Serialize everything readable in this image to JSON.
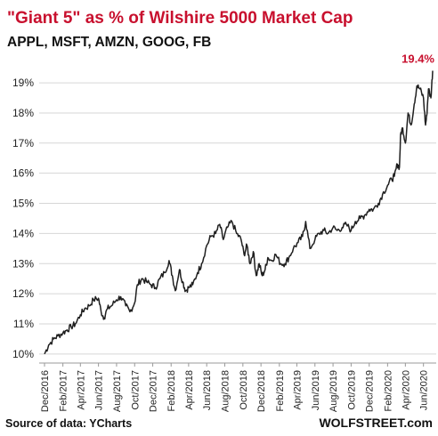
{
  "chart_data": {
    "type": "line",
    "title": "\"Giant 5\" as % of Wilshire 5000 Market Cap",
    "subtitle": "APPL, MSFT, AMZN, GOOG, FB",
    "ylim": [
      9.7,
      19.8
    ],
    "y_ticks": [
      "10%",
      "11%",
      "12%",
      "13%",
      "14%",
      "15%",
      "16%",
      "17%",
      "18%",
      "19%"
    ],
    "y_tick_values": [
      10,
      11,
      12,
      13,
      14,
      15,
      16,
      17,
      18,
      19
    ],
    "x_ticks": [
      "Dec/2016",
      "Feb/2017",
      "Apr/2017",
      "Jun/2017",
      "Aug/2017",
      "Oct/2017",
      "Dec/2017",
      "Feb/2018",
      "Apr/2018",
      "Jun/2018",
      "Aug/2018",
      "Oct/2018",
      "Dec/2018",
      "Feb/2019",
      "Apr/2019",
      "Jun/2019",
      "Aug/2019",
      "Oct/2019",
      "Dec/2019",
      "Feb/2020",
      "Apr/2020",
      "Jun/2020"
    ],
    "grid": true,
    "series": [
      {
        "x": [
          "2016-12-01",
          "2016-12-15",
          "2017-01-01",
          "2017-01-15",
          "2017-02-01",
          "2017-02-15",
          "2017-03-01",
          "2017-03-15",
          "2017-04-01",
          "2017-04-15",
          "2017-05-01",
          "2017-05-15",
          "2017-06-01",
          "2017-06-10",
          "2017-06-20",
          "2017-07-01",
          "2017-07-15",
          "2017-08-01",
          "2017-08-15",
          "2017-09-01",
          "2017-09-15",
          "2017-10-01",
          "2017-10-10",
          "2017-10-25",
          "2017-11-10",
          "2017-11-25",
          "2017-12-10",
          "2017-12-25",
          "2018-01-10",
          "2018-01-25",
          "2018-02-05",
          "2018-02-15",
          "2018-03-01",
          "2018-03-12",
          "2018-03-22",
          "2018-04-01",
          "2018-04-15",
          "2018-05-01",
          "2018-05-15",
          "2018-06-01",
          "2018-06-15",
          "2018-07-01",
          "2018-07-15",
          "2018-07-27",
          "2018-08-10",
          "2018-08-25",
          "2018-09-10",
          "2018-09-25",
          "2018-10-05",
          "2018-10-15",
          "2018-10-25",
          "2018-11-05",
          "2018-11-15",
          "2018-11-25",
          "2018-12-05",
          "2018-12-15",
          "2018-12-24",
          "2019-01-05",
          "2019-01-20",
          "2019-02-05",
          "2019-02-20",
          "2019-03-05",
          "2019-03-20",
          "2019-04-05",
          "2019-04-20",
          "2019-05-01",
          "2019-05-15",
          "2019-06-01",
          "2019-06-15",
          "2019-07-01",
          "2019-07-15",
          "2019-08-01",
          "2019-08-15",
          "2019-09-01",
          "2019-09-15",
          "2019-10-01",
          "2019-10-15",
          "2019-11-01",
          "2019-11-15",
          "2019-12-01",
          "2019-12-15",
          "2020-01-01",
          "2020-01-15",
          "2020-02-01",
          "2020-02-15",
          "2020-02-24",
          "2020-03-05",
          "2020-03-12",
          "2020-03-16",
          "2020-03-23",
          "2020-04-01",
          "2020-04-10",
          "2020-04-20",
          "2020-05-01",
          "2020-05-10",
          "2020-05-20",
          "2020-06-01",
          "2020-06-08",
          "2020-06-12",
          "2020-06-18",
          "2020-06-26",
          "2020-07-02"
        ],
        "y": [
          10.0,
          10.3,
          10.5,
          10.6,
          10.7,
          10.8,
          10.9,
          11.0,
          11.3,
          11.5,
          11.6,
          11.8,
          11.85,
          11.4,
          11.2,
          11.5,
          11.6,
          11.8,
          11.9,
          11.6,
          11.4,
          11.7,
          12.3,
          12.5,
          12.4,
          12.3,
          12.2,
          12.5,
          12.7,
          13.1,
          12.6,
          12.1,
          12.8,
          12.4,
          12.1,
          12.2,
          12.3,
          12.7,
          13.0,
          13.6,
          13.9,
          14.0,
          14.3,
          13.8,
          14.2,
          14.4,
          14.0,
          13.8,
          13.3,
          13.6,
          13.0,
          13.4,
          12.6,
          13.0,
          12.6,
          12.8,
          13.2,
          13.1,
          13.3,
          13.0,
          13.0,
          13.2,
          13.5,
          13.7,
          13.9,
          14.4,
          13.5,
          13.8,
          14.0,
          14.1,
          14.0,
          14.2,
          14.1,
          14.2,
          14.3,
          14.1,
          14.4,
          14.5,
          14.6,
          14.8,
          14.8,
          15.0,
          15.3,
          15.6,
          15.8,
          15.9,
          16.3,
          16.2,
          17.3,
          17.5,
          17.0,
          18.0,
          17.6,
          18.3,
          18.9,
          18.8,
          18.5,
          17.6,
          17.9,
          18.8,
          18.5,
          19.4
        ]
      }
    ],
    "annotation": "19.4%",
    "source": "Source of data: YCharts",
    "brand": "WOLFSTREET.com"
  }
}
